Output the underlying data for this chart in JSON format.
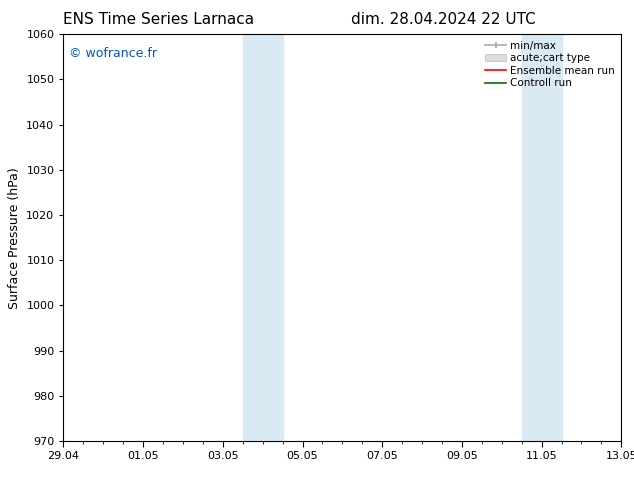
{
  "title_left": "ENS Time Series Larnaca",
  "title_right": "dim. 28.04.2024 22 UTC",
  "ylabel": "Surface Pressure (hPa)",
  "ylim": [
    970,
    1060
  ],
  "yticks": [
    970,
    980,
    990,
    1000,
    1010,
    1020,
    1030,
    1040,
    1050,
    1060
  ],
  "xtick_labels": [
    "29.04",
    "01.05",
    "03.05",
    "05.05",
    "07.05",
    "09.05",
    "11.05",
    "13.05"
  ],
  "xtick_positions": [
    0,
    2,
    4,
    6,
    8,
    10,
    12,
    14
  ],
  "xlim": [
    0,
    14
  ],
  "watermark": "© wofrance.fr",
  "watermark_color": "#0055cc",
  "background_color": "#ffffff",
  "plot_bg_color": "#ffffff",
  "shaded_regions": [
    {
      "x_start": 4.5,
      "x_end": 5.0,
      "color": "#daeaf5"
    },
    {
      "x_start": 5.0,
      "x_end": 5.5,
      "color": "#daeaf5"
    },
    {
      "x_start": 11.5,
      "x_end": 12.0,
      "color": "#daeaf5"
    },
    {
      "x_start": 12.0,
      "x_end": 12.5,
      "color": "#daeaf5"
    }
  ],
  "legend_entries": [
    {
      "label": "min/max",
      "color": "#aaaaaa",
      "lw": 1.5
    },
    {
      "label": "acute;cart type",
      "color": "#cccccc",
      "lw": 6
    },
    {
      "label": "Ensemble mean run",
      "color": "#ff0000",
      "lw": 1.5
    },
    {
      "label": "Controll run",
      "color": "#007000",
      "lw": 1.5
    }
  ],
  "title_fontsize": 11,
  "axis_label_fontsize": 9,
  "tick_fontsize": 8,
  "legend_fontsize": 7.5
}
